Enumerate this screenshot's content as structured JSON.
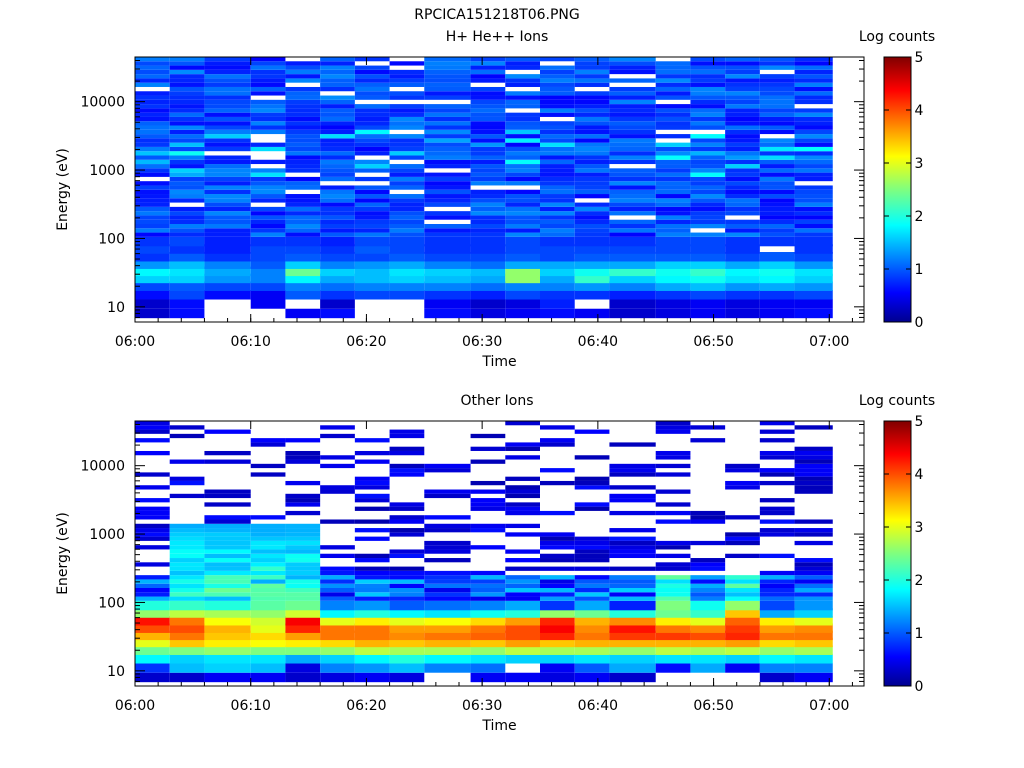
{
  "figure_title": "RPCICA151218T06.PNG",
  "chart_data": [
    {
      "type": "heatmap",
      "title": "H+ He++ Ions",
      "xlabel": "Time",
      "ylabel": "Energy (eV)",
      "x_ticks": [
        "06:00",
        "06:10",
        "06:20",
        "06:30",
        "06:40",
        "06:50",
        "07:00"
      ],
      "x_range": [
        "06:00",
        "07:03"
      ],
      "y_scale": "log",
      "y_ticks": [
        "10",
        "100",
        "1000",
        "10000"
      ],
      "y_range": [
        6,
        45000
      ],
      "colorbar": {
        "label": "Log counts",
        "range": [
          0,
          5
        ],
        "ticks": [
          "0",
          "1",
          "2",
          "3",
          "4",
          "5"
        ]
      },
      "time_bins": [
        "06:00",
        "06:03",
        "06:06",
        "06:10",
        "06:13",
        "06:16",
        "06:19",
        "06:22",
        "06:25",
        "06:29",
        "06:32",
        "06:35",
        "06:38",
        "06:41",
        "06:45",
        "06:48",
        "06:51",
        "06:54",
        "06:57"
      ],
      "low_energy_profile_log_counts": {
        "energy_ev": [
          8,
          11,
          15,
          20,
          26,
          33,
          42,
          54,
          70,
          90
        ],
        "values": [
          [
            0.3,
            0.3,
            0.6,
            0.9,
            1.6,
            1.8,
            1.3,
            0.8,
            0.9,
            0.8
          ],
          [
            0.6,
            0.6,
            0.9,
            1.0,
            1.6,
            1.7,
            1.5,
            1.0,
            0.8,
            0.9
          ],
          [
            null,
            null,
            0.6,
            0.9,
            1.3,
            1.4,
            1.2,
            0.8,
            0.7,
            0.7
          ],
          [
            null,
            0.5,
            0.5,
            0.9,
            1.2,
            1.2,
            1.0,
            0.9,
            0.9,
            0.8
          ],
          [
            0.5,
            null,
            1.0,
            1.2,
            1.8,
            2.4,
            1.6,
            1.0,
            0.9,
            0.8
          ],
          [
            0.6,
            0.3,
            0.8,
            1.1,
            1.4,
            1.6,
            1.2,
            0.9,
            0.8,
            0.7
          ],
          [
            null,
            null,
            0.9,
            1.2,
            1.5,
            1.5,
            1.3,
            0.9,
            1.0,
            0.9
          ],
          [
            null,
            null,
            0.9,
            1.2,
            1.6,
            1.7,
            1.4,
            1.0,
            0.9,
            0.9
          ],
          [
            0.6,
            0.5,
            0.8,
            1.2,
            1.5,
            1.6,
            1.2,
            0.9,
            0.8,
            0.8
          ],
          [
            0.4,
            0.3,
            0.7,
            1.1,
            1.4,
            1.5,
            1.1,
            0.9,
            0.8,
            0.8
          ],
          [
            0.5,
            0.4,
            0.9,
            1.2,
            2.6,
            2.6,
            1.4,
            1.0,
            0.9,
            0.9
          ],
          [
            0.6,
            0.7,
            0.8,
            1.2,
            1.4,
            1.6,
            1.4,
            0.9,
            0.9,
            0.8
          ],
          [
            0.5,
            null,
            0.8,
            1.3,
            2.1,
            1.9,
            1.4,
            1.0,
            0.9,
            0.8
          ],
          [
            0.3,
            0.3,
            0.7,
            1.2,
            1.6,
            2.1,
            1.4,
            1.0,
            0.9,
            0.8
          ],
          [
            0.4,
            0.4,
            0.8,
            1.4,
            1.8,
            1.9,
            1.6,
            1.0,
            0.9,
            0.9
          ],
          [
            0.5,
            0.5,
            0.9,
            1.5,
            1.9,
            2.1,
            1.6,
            1.0,
            0.9,
            0.9
          ],
          [
            0.4,
            0.4,
            0.8,
            1.3,
            1.7,
            1.8,
            1.4,
            0.9,
            0.8,
            0.8
          ],
          [
            0.5,
            0.5,
            0.8,
            1.4,
            1.8,
            1.9,
            1.6,
            1.0,
            null,
            0.8
          ],
          [
            0.6,
            0.5,
            0.9,
            1.3,
            1.6,
            1.7,
            1.3,
            0.9,
            0.8,
            0.8
          ]
        ]
      },
      "above_100ev": "mostly 0.5-1.3 log counts with scattered empty bins"
    },
    {
      "type": "heatmap",
      "title": "Other Ions",
      "xlabel": "Time",
      "ylabel": "Energy (eV)",
      "x_ticks": [
        "06:00",
        "06:10",
        "06:20",
        "06:30",
        "06:40",
        "06:50",
        "07:00"
      ],
      "x_range": [
        "06:00",
        "07:03"
      ],
      "y_scale": "log",
      "y_ticks": [
        "10",
        "100",
        "1000",
        "10000"
      ],
      "y_range": [
        6,
        45000
      ],
      "colorbar": {
        "label": "Log counts",
        "range": [
          0,
          5
        ],
        "ticks": [
          "0",
          "1",
          "2",
          "3",
          "4",
          "5"
        ]
      },
      "time_bins": [
        "06:00",
        "06:03",
        "06:06",
        "06:10",
        "06:13",
        "06:16",
        "06:19",
        "06:22",
        "06:25",
        "06:29",
        "06:32",
        "06:35",
        "06:38",
        "06:41",
        "06:45",
        "06:48",
        "06:51",
        "06:54",
        "06:57"
      ],
      "low_energy_profile_log_counts": {
        "energy_ev": [
          8,
          11,
          15,
          20,
          26,
          33,
          42,
          54,
          70,
          90
        ],
        "values": [
          [
            0.3,
            0.8,
            1.8,
            2.4,
            3.0,
            3.5,
            4.0,
            4.3,
            2.6,
            2.0
          ],
          [
            0.3,
            1.5,
            1.6,
            2.5,
            3.4,
            3.8,
            4.0,
            3.8,
            2.8,
            2.1
          ],
          [
            0.5,
            1.6,
            1.7,
            2.6,
            3.2,
            3.4,
            3.5,
            3.1,
            2.7,
            2.0
          ],
          [
            0.5,
            1.5,
            1.7,
            2.5,
            3.1,
            3.3,
            3.0,
            2.9,
            2.6,
            2.3
          ],
          [
            0.3,
            0.4,
            1.4,
            2.5,
            3.2,
            3.6,
            4.2,
            4.4,
            2.9,
            2.4
          ],
          [
            0.4,
            1.2,
            1.6,
            2.6,
            3.3,
            3.8,
            3.8,
            3.0,
            1.8,
            1.2
          ],
          [
            0.5,
            1.3,
            1.8,
            2.8,
            3.5,
            3.8,
            3.8,
            3.2,
            2.0,
            1.3
          ],
          [
            0.4,
            1.5,
            2.0,
            2.7,
            3.4,
            3.7,
            3.6,
            3.0,
            1.8,
            1.0
          ],
          [
            null,
            1.2,
            1.8,
            2.7,
            3.5,
            3.8,
            3.6,
            3.1,
            1.7,
            1.1
          ],
          [
            0.5,
            1.1,
            1.7,
            2.6,
            3.4,
            3.9,
            3.8,
            3.3,
            1.9,
            1.2
          ],
          [
            0.5,
            null,
            1.6,
            2.8,
            3.6,
            4.0,
            4.0,
            3.6,
            2.0,
            1.4
          ],
          [
            0.4,
            0.5,
            1.6,
            2.7,
            3.4,
            4.2,
            4.4,
            4.2,
            2.6,
            0.8
          ],
          [
            0.5,
            1.0,
            1.7,
            2.7,
            3.5,
            3.8,
            3.7,
            3.5,
            2.4,
            1.4
          ],
          [
            0.3,
            1.4,
            1.6,
            2.6,
            3.5,
            4.1,
            4.3,
            3.7,
            2.0,
            0.7
          ],
          [
            null,
            0.6,
            1.7,
            2.8,
            3.5,
            4.1,
            3.8,
            3.2,
            2.4,
            2.5
          ],
          [
            null,
            1.4,
            1.7,
            2.7,
            3.5,
            4.0,
            3.7,
            3.0,
            2.1,
            1.9
          ],
          [
            null,
            0.5,
            1.6,
            2.8,
            3.6,
            4.2,
            4.1,
            3.9,
            3.4,
            2.6
          ],
          [
            0.3,
            1.2,
            1.8,
            2.6,
            3.3,
            3.8,
            3.6,
            3.2,
            1.4,
            0.9
          ],
          [
            0.5,
            1.2,
            1.7,
            2.7,
            3.4,
            3.8,
            3.7,
            3.0,
            1.6,
            1.3
          ]
        ]
      },
      "above_100ev": "sparse, mostly 0.2-0.8 log counts; 1.5-2.5 up to ~1000 eV near 06:03-06:13"
    }
  ]
}
